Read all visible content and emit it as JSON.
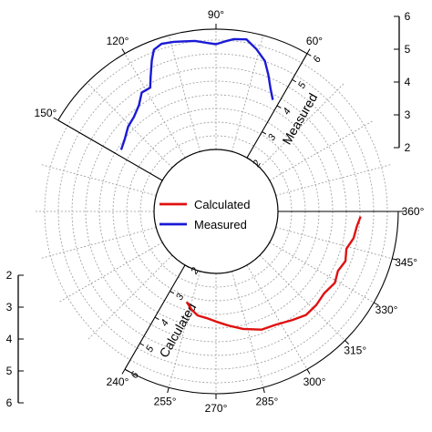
{
  "chart_data": {
    "type": "polar-line",
    "angle_unit": "degrees",
    "radial_min": 2,
    "radial_max": 6,
    "radial_ticks": [
      2,
      3,
      4,
      5,
      6
    ],
    "sectors": [
      {
        "name": "Measured",
        "theta_range": [
          60,
          150
        ],
        "angle_ticks": [
          {
            "deg": 60,
            "label": "60°"
          },
          {
            "deg": 90,
            "label": "90°"
          },
          {
            "deg": 120,
            "label": "120°"
          },
          {
            "deg": 150,
            "label": "150°"
          }
        ]
      },
      {
        "name": "Calculated",
        "theta_range": [
          240,
          360
        ],
        "angle_ticks": [
          {
            "deg": 240,
            "label": "240°"
          },
          {
            "deg": 255,
            "label": "255°"
          },
          {
            "deg": 270,
            "label": "270°"
          },
          {
            "deg": 285,
            "label": "285°"
          },
          {
            "deg": 300,
            "label": "300°"
          },
          {
            "deg": 315,
            "label": "315°"
          },
          {
            "deg": 330,
            "label": "330°"
          },
          {
            "deg": 345,
            "label": "345°"
          },
          {
            "deg": 360,
            "label": "360°"
          }
        ]
      }
    ],
    "radial_axis_titles": [
      "Measured",
      "Calculated"
    ],
    "color_scales": [
      {
        "values": [
          2,
          3,
          4,
          5,
          6
        ],
        "labels": [
          "2",
          "3",
          "4",
          "5",
          "6"
        ]
      },
      {
        "values": [
          2,
          3,
          4,
          5,
          6
        ],
        "labels": [
          "2",
          "3",
          "4",
          "5",
          "6"
        ]
      }
    ],
    "legend": {
      "position": "center",
      "entries": [
        {
          "name": "Calculated",
          "color": "#e01010"
        },
        {
          "name": "Measured",
          "color": "#1a1ad6"
        }
      ]
    },
    "series": [
      {
        "name": "Measured",
        "color": "#1a1ad6",
        "points": [
          [
            63,
            4.1
          ],
          [
            66,
            4.4
          ],
          [
            69,
            4.8
          ],
          [
            72,
            5.2
          ],
          [
            76,
            5.5
          ],
          [
            80,
            5.75
          ],
          [
            84,
            5.7
          ],
          [
            87,
            5.6
          ],
          [
            90,
            5.5
          ],
          [
            93,
            5.55
          ],
          [
            97,
            5.65
          ],
          [
            101,
            5.7
          ],
          [
            104,
            5.75
          ],
          [
            108,
            5.8
          ],
          [
            111,
            5.7
          ],
          [
            113,
            5.4
          ],
          [
            116,
            4.9
          ],
          [
            118,
            4.6
          ],
          [
            122,
            4.6
          ],
          [
            126,
            4.3
          ],
          [
            131,
            4.1
          ],
          [
            136,
            4.0
          ],
          [
            142,
            3.8
          ],
          [
            147,
            3.7
          ]
        ]
      },
      {
        "name": "Calculated",
        "color": "#e01010",
        "points": [
          [
            252,
            3.1
          ],
          [
            256,
            3.3
          ],
          [
            260,
            3.45
          ],
          [
            265,
            3.5
          ],
          [
            270,
            3.6
          ],
          [
            276,
            3.75
          ],
          [
            283,
            3.95
          ],
          [
            291,
            4.15
          ],
          [
            298,
            4.2
          ],
          [
            305,
            4.35
          ],
          [
            311,
            4.5
          ],
          [
            317,
            4.5
          ],
          [
            323,
            4.45
          ],
          [
            329,
            4.55
          ],
          [
            334,
            4.45
          ],
          [
            339,
            4.55
          ],
          [
            344,
            4.45
          ],
          [
            349,
            4.6
          ],
          [
            354,
            4.65
          ],
          [
            358,
            4.75
          ]
        ]
      }
    ]
  }
}
